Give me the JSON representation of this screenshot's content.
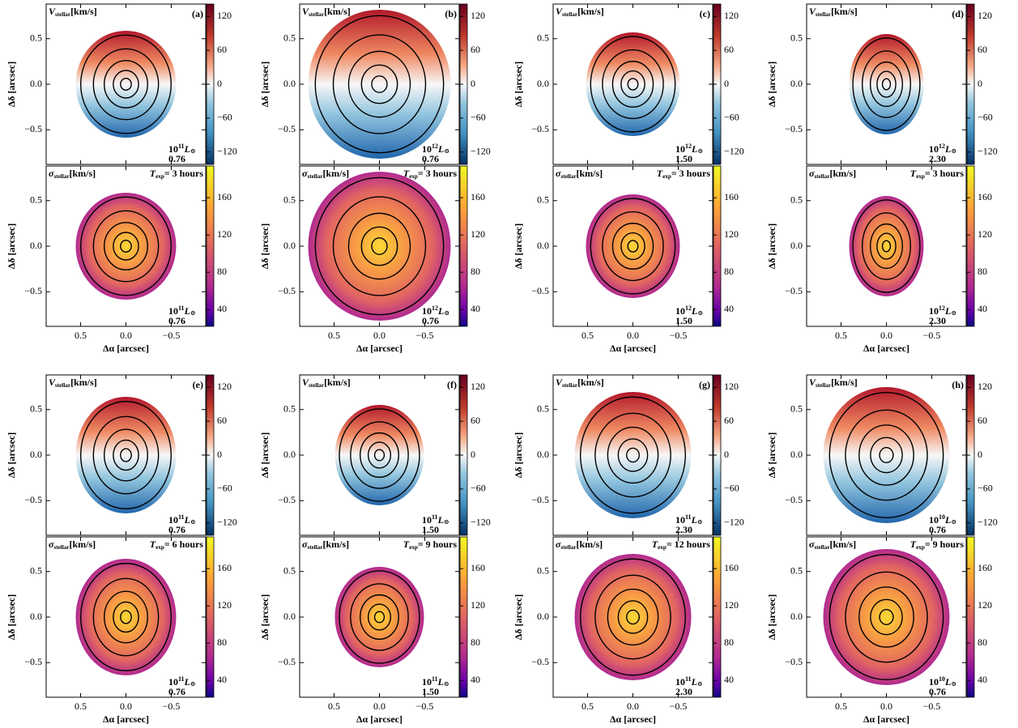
{
  "figure": {
    "velocity_title": {
      "symbol": "V",
      "sub": "stellar",
      "unit": "[km/s]"
    },
    "sigma_title": {
      "symbol": "σ",
      "sub": "stellar",
      "unit": "[km/s]"
    },
    "x_label": "Δα [arcsec]",
    "y_label": "Δδ [arcsec]",
    "xlim": [
      0.88,
      -0.88
    ],
    "xticks": [
      0.5,
      {
        "value": 0,
        "label": "0.0"
      },
      {
        "value": -0.5,
        "label": "−0.5"
      }
    ],
    "ylim": [
      -0.88,
      0.88
    ],
    "yticks": [
      {
        "value": -0.5,
        "label": "−0.5"
      },
      {
        "value": 0,
        "label": "0.0"
      },
      0.5
    ],
    "velocity_colorbar": {
      "lim": [
        -142,
        142
      ],
      "ticks": [
        {
          "value": -120,
          "label": "−120"
        },
        {
          "value": -60,
          "label": "−60"
        },
        0,
        60,
        120
      ]
    },
    "sigma_colorbar": {
      "lim": [
        22,
        194
      ],
      "ticks": [
        40,
        80,
        120,
        160
      ]
    },
    "luminosity_unit": {
      "symbol": "L",
      "sub": "⊙"
    },
    "exposure_symbol": {
      "symbol": "T",
      "sub": "exp"
    },
    "panels": [
      {
        "label": "(a)",
        "luminosity": {
          "base": "10",
          "exp": "11"
        },
        "redshift": "0.76",
        "exposure": "= 3 hours"
      },
      {
        "label": "(b)",
        "luminosity": {
          "base": "10",
          "exp": "12"
        },
        "redshift": "0.76",
        "exposure": "= 3 hours"
      },
      {
        "label": "(c)",
        "luminosity": {
          "base": "10",
          "exp": "12"
        },
        "redshift": "1.50",
        "exposure": "= 3 hours"
      },
      {
        "label": "(d)",
        "luminosity": {
          "base": "10",
          "exp": "12"
        },
        "redshift": "2.30",
        "exposure": "= 3 hours"
      },
      {
        "label": "(e)",
        "luminosity": {
          "base": "10",
          "exp": "11"
        },
        "redshift": "0.76",
        "exposure": "= 6 hours"
      },
      {
        "label": "(f)",
        "luminosity": {
          "base": "10",
          "exp": "11"
        },
        "redshift": "1.50",
        "exposure": "= 9 hours"
      },
      {
        "label": "(g)",
        "luminosity": {
          "base": "10",
          "exp": "11"
        },
        "redshift": "2.30",
        "exposure": "= 12 hours"
      },
      {
        "label": "(h)",
        "luminosity": {
          "base": "10",
          "exp": "10"
        },
        "redshift": "0.76",
        "exposure": "= 9 hours"
      }
    ]
  }
}
